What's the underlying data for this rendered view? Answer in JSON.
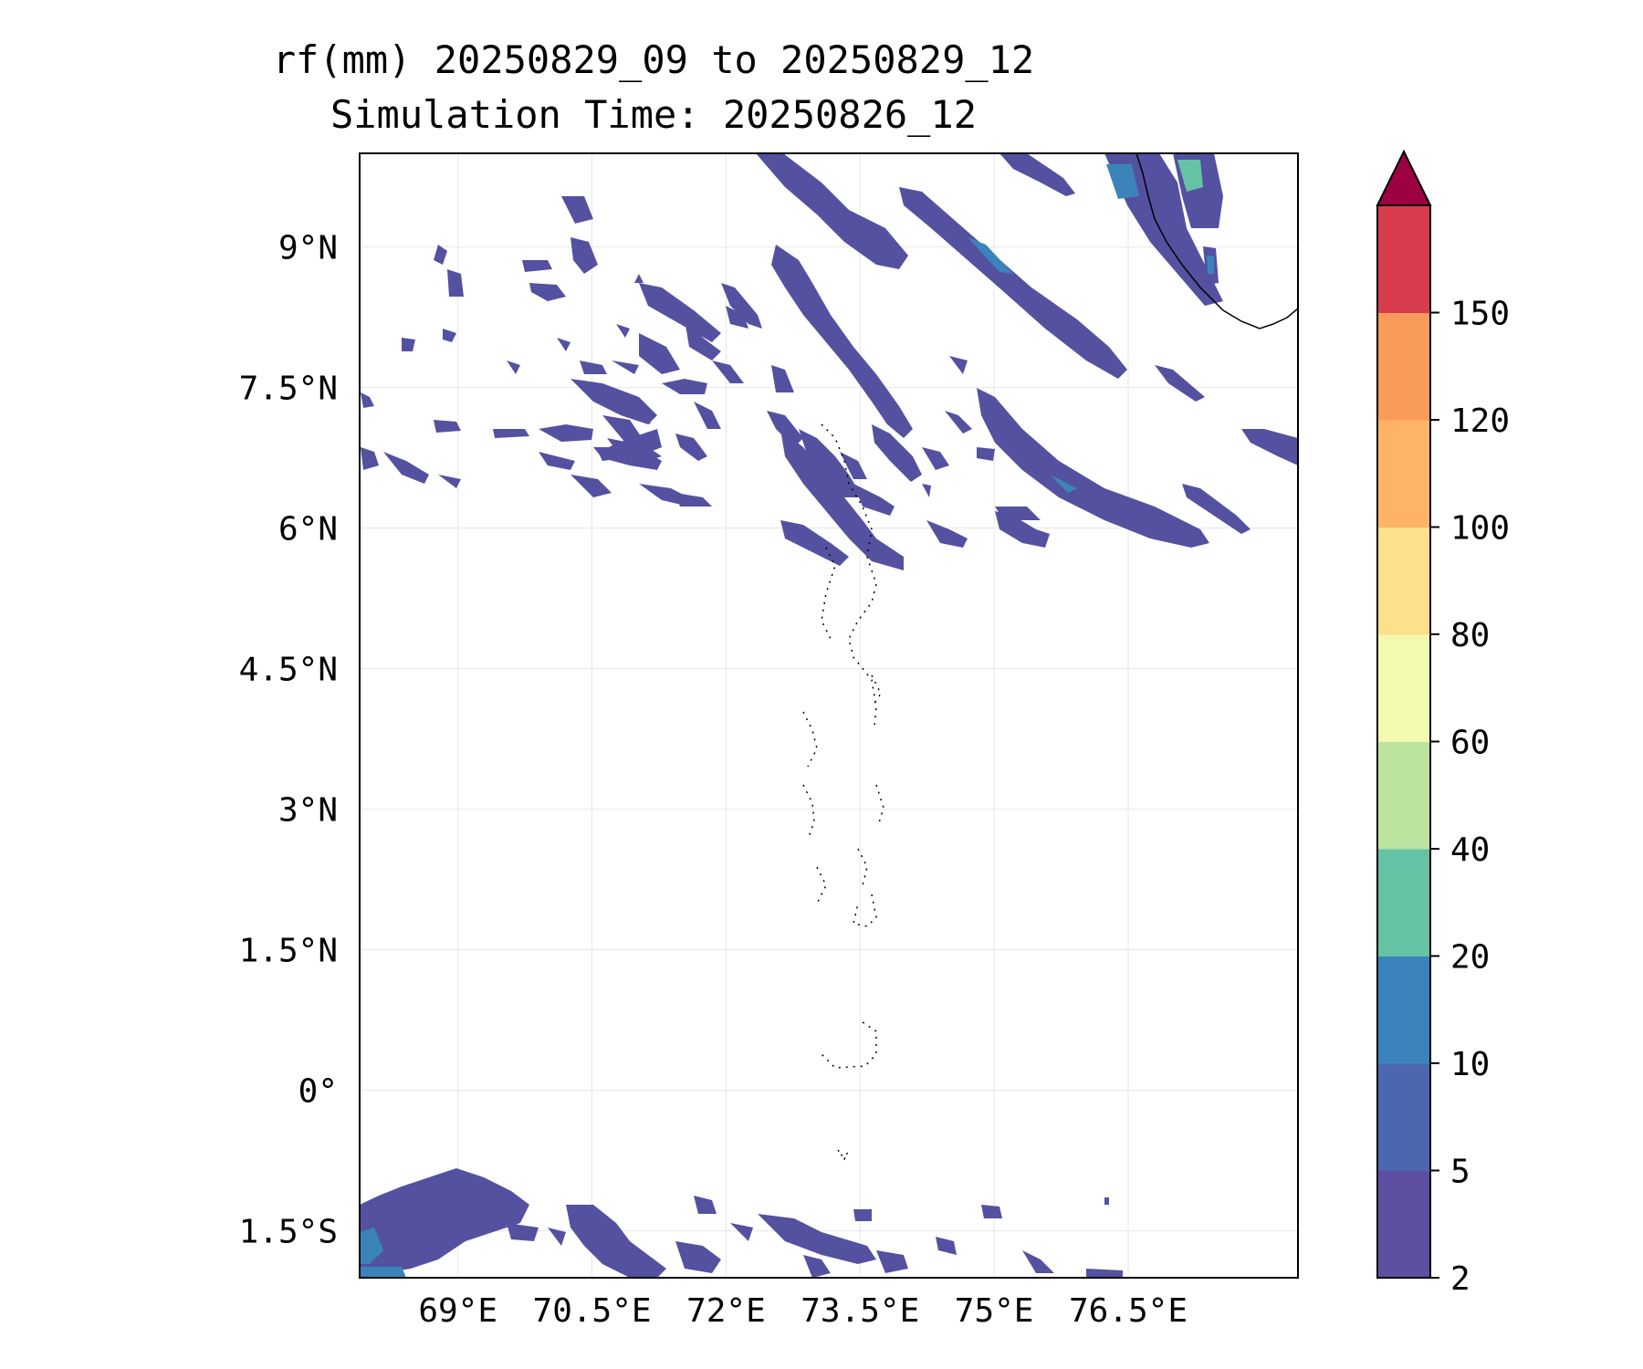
{
  "title": {
    "line1": "rf(mm) 20250829_09 to 20250829_12",
    "line2": "Simulation Time: 20250826_12"
  },
  "map": {
    "extent_lon": [
      67.9,
      78.4
    ],
    "extent_lat": [
      -2.0,
      10.0
    ],
    "x_ticks": [
      {
        "value": 69.0,
        "label": "69°E"
      },
      {
        "value": 70.5,
        "label": "70.5°E"
      },
      {
        "value": 72.0,
        "label": "72°E"
      },
      {
        "value": 73.5,
        "label": "73.5°E"
      },
      {
        "value": 75.0,
        "label": "75°E"
      },
      {
        "value": 76.5,
        "label": "76.5°E"
      }
    ],
    "y_ticks": [
      {
        "value": 9.0,
        "label": "9°N"
      },
      {
        "value": 7.5,
        "label": "7.5°N"
      },
      {
        "value": 6.0,
        "label": "6°N"
      },
      {
        "value": 4.5,
        "label": "4.5°N"
      },
      {
        "value": 3.0,
        "label": "3°N"
      },
      {
        "value": 1.5,
        "label": "1.5°N"
      },
      {
        "value": 0.0,
        "label": "0°"
      },
      {
        "value": -1.5,
        "label": "1.5°S"
      }
    ],
    "grid": true
  },
  "colorbar": {
    "levels": [
      "2",
      "5",
      "10",
      "20",
      "40",
      "60",
      "80",
      "100",
      "120",
      "150"
    ],
    "colors": [
      "#5e4fa2",
      "#4d66b0",
      "#3b84bb",
      "#66c2a5",
      "#bde3a0",
      "#f3f9ae",
      "#fde08b",
      "#fdb466",
      "#f99b58",
      "#d63c4d"
    ],
    "extend_color": "#9e0142"
  },
  "rain_colors": {
    "low": "#5451a1",
    "mid": "#3b84bb",
    "high": "#66c2a5"
  }
}
